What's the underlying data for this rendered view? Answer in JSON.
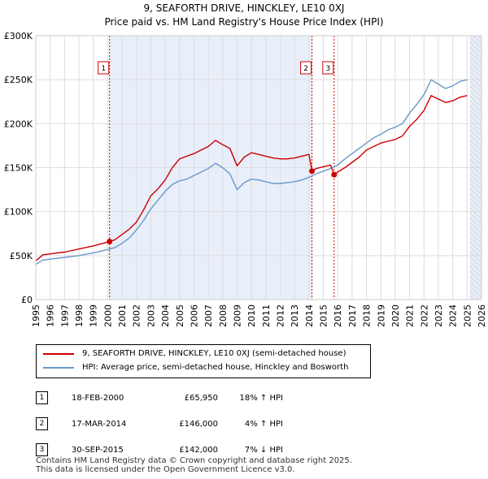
{
  "title_line1": "9, SEAFORTH DRIVE, HINCKLEY, LE10 0XJ",
  "title_line2": "Price paid vs. HM Land Registry's House Price Index (HPI)",
  "chart_data": {
    "type": "line",
    "x_ticks": [
      1995,
      1996,
      1997,
      1998,
      1999,
      2000,
      2001,
      2002,
      2003,
      2004,
      2005,
      2006,
      2007,
      2008,
      2009,
      2010,
      2011,
      2012,
      2013,
      2014,
      2015,
      2016,
      2017,
      2018,
      2019,
      2020,
      2021,
      2022,
      2023,
      2024,
      2025,
      2026
    ],
    "y_ticks": [
      {
        "value": 0,
        "label": "£0"
      },
      {
        "value": 50000,
        "label": "£50K"
      },
      {
        "value": 100000,
        "label": "£100K"
      },
      {
        "value": 150000,
        "label": "£150K"
      },
      {
        "value": 200000,
        "label": "£200K"
      },
      {
        "value": 250000,
        "label": "£250K"
      },
      {
        "value": 300000,
        "label": "£300K"
      }
    ],
    "xlim": [
      1995,
      2026
    ],
    "ylim": [
      0,
      300000
    ],
    "grid": true,
    "shaded_periods": [
      [
        2000.13,
        2014.21
      ],
      [
        2025.2,
        2026
      ]
    ],
    "series": [
      {
        "name": "9, SEAFORTH DRIVE, HINCKLEY, LE10 0XJ (semi-detached house)",
        "color": "#cc0000",
        "points": [
          [
            1995.0,
            44000
          ],
          [
            1995.5,
            51000
          ],
          [
            1996,
            52000
          ],
          [
            1997,
            54000
          ],
          [
            1998,
            57500
          ],
          [
            1999,
            61000
          ],
          [
            2000.13,
            65950
          ],
          [
            2000.5,
            68000
          ],
          [
            2001,
            74000
          ],
          [
            2001.5,
            80000
          ],
          [
            2002,
            88000
          ],
          [
            2002.5,
            102000
          ],
          [
            2003,
            118000
          ],
          [
            2003.5,
            126000
          ],
          [
            2004,
            136000
          ],
          [
            2004.5,
            150000
          ],
          [
            2005,
            160000
          ],
          [
            2005.5,
            163000
          ],
          [
            2006,
            166000
          ],
          [
            2006.5,
            170000
          ],
          [
            2007,
            174000
          ],
          [
            2007.5,
            181000
          ],
          [
            2008,
            176000
          ],
          [
            2008.5,
            172000
          ],
          [
            2009,
            152000
          ],
          [
            2009.5,
            162000
          ],
          [
            2010,
            167000
          ],
          [
            2010.5,
            165000
          ],
          [
            2011,
            163000
          ],
          [
            2011.5,
            161000
          ],
          [
            2012,
            160000
          ],
          [
            2012.5,
            160000
          ],
          [
            2013,
            161000
          ],
          [
            2013.5,
            163000
          ],
          [
            2014.0,
            165000
          ],
          [
            2014.21,
            146000
          ],
          [
            2014.5,
            149000
          ],
          [
            2015,
            151000
          ],
          [
            2015.5,
            153000
          ],
          [
            2015.75,
            142000
          ],
          [
            2016,
            145000
          ],
          [
            2016.5,
            150000
          ],
          [
            2017,
            156000
          ],
          [
            2017.5,
            162000
          ],
          [
            2018,
            170000
          ],
          [
            2018.5,
            174000
          ],
          [
            2019,
            178000
          ],
          [
            2019.5,
            180000
          ],
          [
            2020,
            182000
          ],
          [
            2020.5,
            186000
          ],
          [
            2021,
            197000
          ],
          [
            2021.5,
            205000
          ],
          [
            2022,
            215000
          ],
          [
            2022.5,
            232000
          ],
          [
            2023,
            228000
          ],
          [
            2023.5,
            224000
          ],
          [
            2024,
            226000
          ],
          [
            2024.5,
            230000
          ],
          [
            2025.0,
            232000
          ]
        ]
      },
      {
        "name": "HPI: Average price, semi-detached house, Hinckley and Bosworth",
        "color": "#6a98c8",
        "points": [
          [
            1995.0,
            40000
          ],
          [
            1995.5,
            45000
          ],
          [
            1996,
            46000
          ],
          [
            1997,
            48000
          ],
          [
            1998,
            50000
          ],
          [
            1999,
            53000
          ],
          [
            2000,
            57000
          ],
          [
            2000.5,
            59000
          ],
          [
            2001,
            64000
          ],
          [
            2001.5,
            70000
          ],
          [
            2002,
            79000
          ],
          [
            2002.5,
            90000
          ],
          [
            2003,
            103000
          ],
          [
            2003.5,
            113000
          ],
          [
            2004,
            123000
          ],
          [
            2004.5,
            131000
          ],
          [
            2005,
            135000
          ],
          [
            2005.5,
            137000
          ],
          [
            2006,
            141000
          ],
          [
            2006.5,
            145000
          ],
          [
            2007,
            149000
          ],
          [
            2007.5,
            155000
          ],
          [
            2008,
            150000
          ],
          [
            2008.5,
            143000
          ],
          [
            2009,
            125000
          ],
          [
            2009.5,
            133000
          ],
          [
            2010,
            137000
          ],
          [
            2010.5,
            136000
          ],
          [
            2011,
            134000
          ],
          [
            2011.5,
            132000
          ],
          [
            2012,
            132000
          ],
          [
            2012.5,
            133000
          ],
          [
            2013,
            134000
          ],
          [
            2013.5,
            136000
          ],
          [
            2014,
            139000
          ],
          [
            2014.5,
            143000
          ],
          [
            2015,
            146000
          ],
          [
            2015.5,
            149000
          ],
          [
            2016,
            153000
          ],
          [
            2016.5,
            160000
          ],
          [
            2017,
            166000
          ],
          [
            2017.5,
            172000
          ],
          [
            2018,
            178000
          ],
          [
            2018.5,
            184000
          ],
          [
            2019,
            188000
          ],
          [
            2019.5,
            193000
          ],
          [
            2020,
            196000
          ],
          [
            2020.5,
            200000
          ],
          [
            2021,
            212000
          ],
          [
            2021.5,
            222000
          ],
          [
            2022,
            233000
          ],
          [
            2022.5,
            250000
          ],
          [
            2023,
            245000
          ],
          [
            2023.5,
            240000
          ],
          [
            2024,
            243000
          ],
          [
            2024.5,
            248000
          ],
          [
            2025.0,
            250000
          ]
        ]
      }
    ],
    "markers": [
      {
        "label": "1",
        "x": 2000.13,
        "y": 65950
      },
      {
        "label": "2",
        "x": 2014.21,
        "y": 146000
      },
      {
        "label": "3",
        "x": 2015.75,
        "y": 142000
      }
    ]
  },
  "legend": {
    "property_label": "9, SEAFORTH DRIVE, HINCKLEY, LE10 0XJ (semi-detached house)",
    "hpi_label": "HPI: Average price, semi-detached house, Hinckley and Bosworth"
  },
  "transactions": [
    {
      "num": "1",
      "date": "18-FEB-2000",
      "price": "£65,950",
      "hpi": "18% ↑ HPI"
    },
    {
      "num": "2",
      "date": "17-MAR-2014",
      "price": "£146,000",
      "hpi": "4% ↑ HPI"
    },
    {
      "num": "3",
      "date": "30-SEP-2015",
      "price": "£142,000",
      "hpi": "7% ↓ HPI"
    }
  ],
  "footer_line1": "Contains HM Land Registry data © Crown copyright and database right 2025.",
  "footer_line2": "This data is licensed under the Open Government Licence v3.0."
}
